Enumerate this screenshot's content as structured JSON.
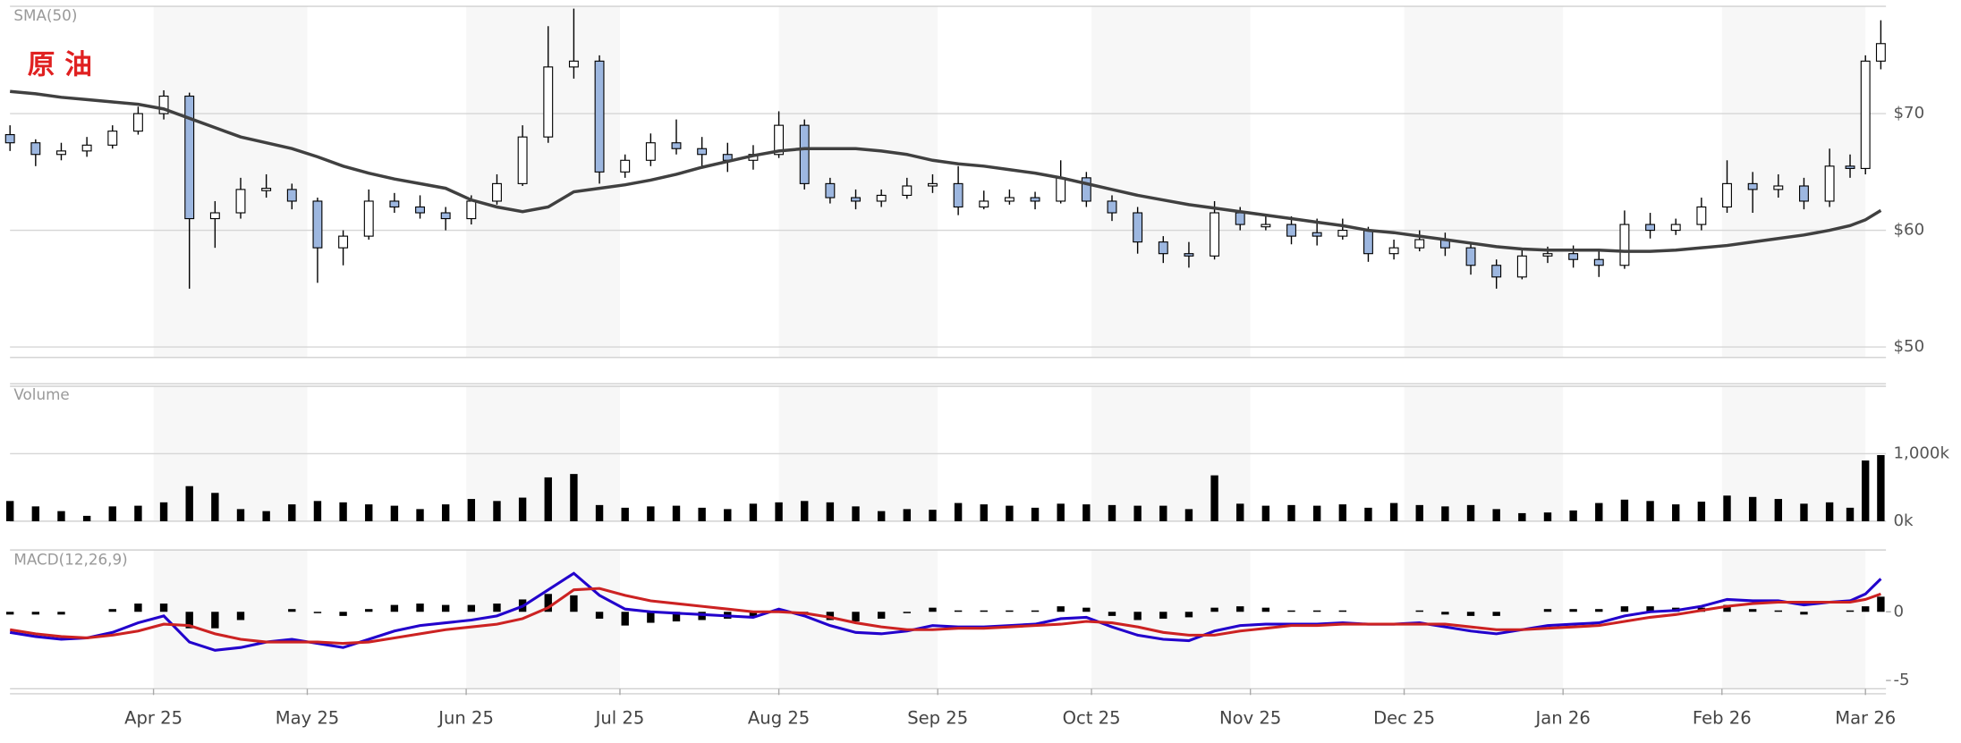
{
  "chart_data": [
    {
      "type": "candlestick",
      "title": "原 油",
      "x": [
        0,
        5,
        10,
        15,
        20,
        25,
        30,
        35,
        40,
        45,
        50,
        55,
        60,
        65,
        70,
        75,
        80,
        85,
        90,
        95,
        100,
        105,
        110,
        115,
        120,
        125,
        130,
        135,
        140,
        145,
        150,
        155,
        160,
        165,
        170,
        175,
        180,
        185,
        190,
        195,
        200,
        205,
        210,
        215,
        220,
        225,
        230,
        235,
        240,
        245,
        250,
        255,
        260,
        265,
        270,
        275,
        280,
        285,
        290,
        295,
        300,
        305,
        310,
        315,
        320,
        325,
        330,
        335,
        340,
        345,
        350,
        355,
        359,
        362,
        365
      ],
      "open": [
        68.2,
        67.5,
        66.5,
        66.8,
        67.3,
        68.5,
        70,
        71.5,
        61,
        61.5,
        63.4,
        63.5,
        62.5,
        58.5,
        59.5,
        62.5,
        62,
        61.5,
        61,
        62.5,
        64,
        68,
        74,
        74.5,
        65,
        66,
        67.5,
        67,
        66.5,
        66,
        66.5,
        69,
        64,
        62.8,
        62.5,
        63,
        63.8,
        64,
        62,
        62.5,
        62.8,
        62.5,
        64.5,
        62.5,
        61.5,
        59,
        58,
        57.8,
        61.5,
        60.3,
        60.5,
        59.8,
        59.5,
        60,
        58,
        58.5,
        59.2,
        58.5,
        57,
        56,
        57.8,
        58,
        57.5,
        57,
        60.5,
        60,
        60.5,
        62,
        64,
        63.5,
        63.8,
        62.5,
        65.5,
        65.3,
        74.5
      ],
      "high": [
        69,
        67.8,
        67.5,
        68,
        69,
        70.6,
        72,
        71.8,
        62.5,
        64.5,
        64.8,
        64,
        62.8,
        60,
        63.5,
        63.2,
        63,
        62,
        63,
        64.8,
        69,
        77.5,
        79,
        75,
        66.5,
        68.3,
        69.5,
        68,
        67.5,
        67.3,
        70.2,
        69.5,
        64.5,
        63.5,
        63.5,
        64.5,
        64.8,
        65.5,
        63.4,
        63.5,
        63.3,
        66,
        65,
        63,
        62,
        59.5,
        59,
        62.5,
        62,
        61.3,
        61.2,
        61,
        61,
        60.3,
        59.2,
        60,
        59.8,
        58.8,
        57.5,
        58.3,
        58.6,
        58.7,
        58.3,
        61.7,
        61.5,
        61,
        62.8,
        66,
        65,
        64.8,
        64.5,
        67,
        66.5,
        75,
        78
      ],
      "low": [
        66.8,
        65.5,
        66,
        66.3,
        67,
        68.2,
        69.5,
        55,
        58.5,
        61,
        62.8,
        61.8,
        55.5,
        57,
        59.2,
        61.5,
        61,
        60,
        60.5,
        62.2,
        63.8,
        67.5,
        73,
        64,
        64.5,
        65.5,
        66.5,
        65.5,
        65,
        65.2,
        66.2,
        63.5,
        62.3,
        61.8,
        62,
        62.7,
        63.2,
        61.3,
        61.8,
        62.2,
        61.8,
        62.3,
        62,
        60.8,
        58,
        57.2,
        56.8,
        57.5,
        60,
        60,
        58.8,
        58.7,
        59.2,
        57.3,
        57.5,
        58.2,
        57.8,
        56.2,
        55,
        55.8,
        57.2,
        56.8,
        56,
        56.7,
        59.3,
        59.6,
        60,
        61.5,
        61.5,
        62.8,
        61.8,
        62,
        64.5,
        64.8,
        73.8
      ],
      "close": [
        67.5,
        66.5,
        66.8,
        67.3,
        68.5,
        70,
        71.5,
        61,
        61.5,
        63.5,
        63.6,
        62.5,
        58.5,
        59.5,
        62.5,
        62,
        61.5,
        61,
        62.5,
        64,
        68,
        74,
        74.5,
        65,
        66,
        67.5,
        67,
        66.5,
        66,
        66.5,
        69,
        64,
        62.8,
        62.5,
        63,
        63.8,
        64,
        62,
        62.5,
        62.8,
        62.5,
        64.5,
        62.5,
        61.5,
        59,
        58,
        57.8,
        61.5,
        60.5,
        60.5,
        59.5,
        59.5,
        60,
        58,
        58.5,
        59.2,
        58.5,
        57,
        56,
        57.8,
        58,
        57.5,
        57,
        60.5,
        60,
        60.5,
        62,
        64,
        63.5,
        63.8,
        62.5,
        65.5,
        65.3,
        74.5,
        76
      ],
      "up_color": "#ffffff",
      "down_color": "#9db7e0",
      "series": [
        {
          "name": "SMA(50)",
          "color": "#404040",
          "values": [
            71.9,
            71.7,
            71.4,
            71.2,
            71.0,
            70.8,
            70.4,
            69.6,
            68.8,
            68.0,
            67.5,
            67.0,
            66.3,
            65.5,
            64.9,
            64.4,
            64.0,
            63.6,
            62.6,
            62.0,
            61.6,
            62.0,
            63.3,
            63.6,
            63.9,
            64.3,
            64.8,
            65.4,
            65.9,
            66.4,
            66.8,
            67.0,
            67.0,
            67.0,
            66.8,
            66.5,
            66.0,
            65.7,
            65.5,
            65.2,
            64.9,
            64.5,
            64.0,
            63.5,
            63.0,
            62.6,
            62.2,
            61.9,
            61.6,
            61.3,
            61.0,
            60.7,
            60.4,
            60.0,
            59.8,
            59.5,
            59.2,
            58.9,
            58.6,
            58.4,
            58.3,
            58.3,
            58.3,
            58.2,
            58.2,
            58.3,
            58.5,
            58.7,
            59.0,
            59.3,
            59.6,
            60.0,
            60.4,
            60.9,
            61.7
          ]
        }
      ],
      "xlim": [
        0,
        366
      ],
      "ylim": [
        49.1,
        79.2
      ],
      "yticks": [
        {
          "value": 50,
          "label": "$50"
        },
        {
          "value": 60,
          "label": "$60"
        },
        {
          "value": 70,
          "label": "$70"
        }
      ],
      "grid": true
    },
    {
      "type": "bar",
      "title": "Volume",
      "color": "#000000",
      "x": [
        0,
        5,
        10,
        15,
        20,
        25,
        30,
        35,
        40,
        45,
        50,
        55,
        60,
        65,
        70,
        75,
        80,
        85,
        90,
        95,
        100,
        105,
        110,
        115,
        120,
        125,
        130,
        135,
        140,
        145,
        150,
        155,
        160,
        165,
        170,
        175,
        180,
        185,
        190,
        195,
        200,
        205,
        210,
        215,
        220,
        225,
        230,
        235,
        240,
        245,
        250,
        255,
        260,
        265,
        270,
        275,
        280,
        285,
        290,
        295,
        300,
        305,
        310,
        315,
        320,
        325,
        330,
        335,
        340,
        345,
        350,
        355,
        359,
        362,
        365
      ],
      "values": [
        300,
        220,
        150,
        80,
        220,
        230,
        280,
        520,
        420,
        180,
        150,
        250,
        300,
        280,
        250,
        230,
        180,
        250,
        330,
        300,
        350,
        650,
        700,
        240,
        200,
        220,
        230,
        200,
        180,
        260,
        280,
        300,
        280,
        220,
        150,
        180,
        170,
        270,
        250,
        230,
        200,
        260,
        250,
        240,
        230,
        230,
        180,
        680,
        260,
        230,
        240,
        230,
        250,
        200,
        270,
        240,
        220,
        240,
        180,
        120,
        130,
        160,
        270,
        320,
        300,
        250,
        290,
        380,
        360,
        330,
        260,
        280,
        200,
        900,
        980
      ],
      "xlim": [
        0,
        366
      ],
      "ylim": [
        0,
        2000
      ],
      "yticks": [
        {
          "value": 0,
          "label": "0k"
        },
        {
          "value": 1000,
          "label": "1,000k"
        }
      ],
      "grid": true
    },
    {
      "type": "line",
      "title": "MACD(12,26,9)",
      "x": [
        0,
        5,
        10,
        15,
        20,
        25,
        30,
        35,
        40,
        45,
        50,
        55,
        60,
        65,
        70,
        75,
        80,
        85,
        90,
        95,
        100,
        105,
        110,
        115,
        120,
        125,
        130,
        135,
        140,
        145,
        150,
        155,
        160,
        165,
        170,
        175,
        180,
        185,
        190,
        195,
        200,
        205,
        210,
        215,
        220,
        225,
        230,
        235,
        240,
        245,
        250,
        255,
        260,
        265,
        270,
        275,
        280,
        285,
        290,
        295,
        300,
        305,
        310,
        315,
        320,
        325,
        330,
        335,
        340,
        345,
        350,
        355,
        359,
        362,
        365
      ],
      "histogram": {
        "color": "#000000",
        "values": [
          -0.2,
          -0.2,
          -0.2,
          0.0,
          0.2,
          0.6,
          0.6,
          -1.2,
          -1.2,
          -0.6,
          0.0,
          0.2,
          -0.1,
          -0.3,
          0.2,
          0.5,
          0.6,
          0.5,
          0.5,
          0.6,
          0.9,
          1.3,
          1.2,
          -0.5,
          -1.0,
          -0.8,
          -0.7,
          -0.6,
          -0.5,
          -0.4,
          0.2,
          -0.2,
          -0.6,
          -0.7,
          -0.5,
          -0.1,
          0.3,
          0.1,
          0.1,
          0.1,
          0.1,
          0.4,
          0.3,
          -0.3,
          -0.6,
          -0.5,
          -0.4,
          0.3,
          0.4,
          0.3,
          0.1,
          0.1,
          0.1,
          0.0,
          0.0,
          0.1,
          -0.2,
          -0.3,
          -0.3,
          0.0,
          0.2,
          0.2,
          0.2,
          0.4,
          0.4,
          0.3,
          0.3,
          0.5,
          0.2,
          0.1,
          -0.2,
          0.0,
          0.1,
          0.4,
          1.1
        ]
      },
      "series": [
        {
          "color": "#2200cc",
          "values": [
            -1.5,
            -1.8,
            -2.0,
            -1.9,
            -1.5,
            -0.8,
            -0.3,
            -2.2,
            -2.8,
            -2.6,
            -2.2,
            -2.0,
            -2.3,
            -2.6,
            -2.0,
            -1.4,
            -1.0,
            -0.8,
            -0.6,
            -0.3,
            0.4,
            1.6,
            2.8,
            1.2,
            0.2,
            0.0,
            -0.1,
            -0.2,
            -0.3,
            -0.4,
            0.2,
            -0.3,
            -1.0,
            -1.5,
            -1.6,
            -1.4,
            -1.0,
            -1.1,
            -1.1,
            -1.0,
            -0.9,
            -0.5,
            -0.4,
            -1.1,
            -1.7,
            -2.0,
            -2.1,
            -1.4,
            -1.0,
            -0.9,
            -0.9,
            -0.9,
            -0.8,
            -0.9,
            -0.9,
            -0.8,
            -1.1,
            -1.4,
            -1.6,
            -1.3,
            -1.0,
            -0.9,
            -0.8,
            -0.3,
            0.0,
            0.1,
            0.4,
            0.9,
            0.8,
            0.8,
            0.5,
            0.7,
            0.8,
            1.3,
            2.4
          ]
        },
        {
          "color": "#cc2222",
          "values": [
            -1.3,
            -1.6,
            -1.8,
            -1.9,
            -1.7,
            -1.4,
            -0.9,
            -1.0,
            -1.6,
            -2.0,
            -2.2,
            -2.2,
            -2.2,
            -2.3,
            -2.2,
            -1.9,
            -1.6,
            -1.3,
            -1.1,
            -0.9,
            -0.5,
            0.3,
            1.6,
            1.7,
            1.2,
            0.8,
            0.6,
            0.4,
            0.2,
            0.0,
            0.0,
            -0.1,
            -0.4,
            -0.8,
            -1.1,
            -1.3,
            -1.3,
            -1.2,
            -1.2,
            -1.1,
            -1.0,
            -0.9,
            -0.7,
            -0.8,
            -1.1,
            -1.5,
            -1.7,
            -1.7,
            -1.4,
            -1.2,
            -1.0,
            -1.0,
            -0.9,
            -0.9,
            -0.9,
            -0.9,
            -0.9,
            -1.1,
            -1.3,
            -1.3,
            -1.2,
            -1.1,
            -1.0,
            -0.7,
            -0.4,
            -0.2,
            0.1,
            0.4,
            0.6,
            0.7,
            0.7,
            0.7,
            0.7,
            0.9,
            1.3
          ]
        }
      ],
      "xlim": [
        0,
        366
      ],
      "ylim": [
        -5.6,
        4.5
      ],
      "yticks": [
        -5,
        0
      ],
      "grid": false,
      "xticks": [
        {
          "value": 28,
          "label": "Apr 25"
        },
        {
          "value": 58,
          "label": "May 25"
        },
        {
          "value": 89,
          "label": "Jun 25"
        },
        {
          "value": 119,
          "label": "Jul 25"
        },
        {
          "value": 150,
          "label": "Aug 25"
        },
        {
          "value": 181,
          "label": "Sep 25"
        },
        {
          "value": 211,
          "label": "Oct 25"
        },
        {
          "value": 242,
          "label": "Nov 25"
        },
        {
          "value": 272,
          "label": "Dec 25"
        },
        {
          "value": 303,
          "label": "Jan 26"
        },
        {
          "value": 334,
          "label": "Feb 26"
        },
        {
          "value": 362,
          "label": "Mar 26"
        }
      ]
    }
  ]
}
